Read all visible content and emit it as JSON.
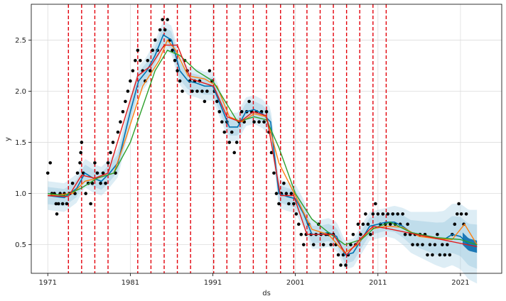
{
  "chart_data": {
    "type": "line",
    "xlabel": "ds",
    "ylabel": "y",
    "xlim": [
      1969.0,
      2026.0
    ],
    "ylim": [
      0.22,
      2.85
    ],
    "x_ticks": [
      {
        "value": 1971,
        "label": "1971"
      },
      {
        "value": 1981,
        "label": "1981"
      },
      {
        "value": 1991,
        "label": "1991"
      },
      {
        "value": 2001,
        "label": "2001"
      },
      {
        "value": 2011,
        "label": "2011"
      },
      {
        "value": 2021,
        "label": "2021"
      }
    ],
    "y_ticks": [
      {
        "value": 0.5,
        "label": "0.5"
      },
      {
        "value": 1.0,
        "label": "1.0"
      },
      {
        "value": 1.5,
        "label": "1.5"
      },
      {
        "value": 2.0,
        "label": "2.0"
      },
      {
        "value": 2.5,
        "label": "2.5"
      }
    ],
    "grid": true,
    "changepoints": [
      1973.5,
      1975.1,
      1976.7,
      1978.3,
      1981.9,
      1983.5,
      1985.1,
      1986.7,
      1988.3,
      1991.1,
      1992.7,
      1994.3,
      1995.9,
      1997.5,
      1999.2,
      2000.8,
      2002.4,
      2004.0,
      2005.6,
      2007.2,
      2008.8,
      2010.4,
      2012.0
    ],
    "observations": [
      [
        1971.0,
        1.2
      ],
      [
        1971.3,
        1.3
      ],
      [
        1971.5,
        1.0
      ],
      [
        1971.8,
        1.0
      ],
      [
        1972.0,
        0.9
      ],
      [
        1972.1,
        0.8
      ],
      [
        1972.3,
        0.9
      ],
      [
        1972.5,
        1.0
      ],
      [
        1972.8,
        0.9
      ],
      [
        1973.0,
        1.0
      ],
      [
        1973.3,
        0.9
      ],
      [
        1973.7,
        1.0
      ],
      [
        1974.0,
        1.1
      ],
      [
        1974.3,
        1.0
      ],
      [
        1974.6,
        1.2
      ],
      [
        1974.9,
        1.3
      ],
      [
        1975.0,
        1.4
      ],
      [
        1975.1,
        1.5
      ],
      [
        1975.3,
        1.2
      ],
      [
        1975.6,
        1.0
      ],
      [
        1975.9,
        1.1
      ],
      [
        1976.2,
        0.9
      ],
      [
        1976.4,
        1.1
      ],
      [
        1976.7,
        1.3
      ],
      [
        1977.0,
        1.2
      ],
      [
        1977.4,
        1.1
      ],
      [
        1977.7,
        1.2
      ],
      [
        1978.0,
        1.1
      ],
      [
        1978.3,
        1.3
      ],
      [
        1978.6,
        1.4
      ],
      [
        1978.9,
        1.5
      ],
      [
        1979.2,
        1.2
      ],
      [
        1979.5,
        1.6
      ],
      [
        1979.8,
        1.7
      ],
      [
        1980.1,
        1.8
      ],
      [
        1980.4,
        1.9
      ],
      [
        1980.7,
        2.0
      ],
      [
        1981.0,
        2.1
      ],
      [
        1981.3,
        2.2
      ],
      [
        1981.6,
        2.3
      ],
      [
        1981.9,
        2.4
      ],
      [
        1982.2,
        2.3
      ],
      [
        1982.5,
        2.2
      ],
      [
        1982.8,
        2.1
      ],
      [
        1983.1,
        2.3
      ],
      [
        1983.4,
        2.2
      ],
      [
        1983.7,
        2.4
      ],
      [
        1984.0,
        2.5
      ],
      [
        1984.3,
        2.4
      ],
      [
        1984.6,
        2.6
      ],
      [
        1984.9,
        2.7
      ],
      [
        1985.2,
        2.6
      ],
      [
        1985.5,
        2.7
      ],
      [
        1985.8,
        2.5
      ],
      [
        1986.1,
        2.4
      ],
      [
        1986.4,
        2.3
      ],
      [
        1986.7,
        2.2
      ],
      [
        1987.0,
        2.1
      ],
      [
        1987.3,
        2.0
      ],
      [
        1987.6,
        2.3
      ],
      [
        1987.9,
        2.2
      ],
      [
        1988.2,
        2.1
      ],
      [
        1988.5,
        2.0
      ],
      [
        1988.8,
        2.1
      ],
      [
        1989.1,
        2.0
      ],
      [
        1989.4,
        2.1
      ],
      [
        1989.7,
        2.0
      ],
      [
        1990.0,
        1.9
      ],
      [
        1990.3,
        2.0
      ],
      [
        1990.6,
        2.2
      ],
      [
        1990.9,
        2.1
      ],
      [
        1991.2,
        2.0
      ],
      [
        1991.5,
        1.9
      ],
      [
        1991.8,
        1.8
      ],
      [
        1992.1,
        1.7
      ],
      [
        1992.4,
        1.6
      ],
      [
        1992.7,
        1.7
      ],
      [
        1993.0,
        1.5
      ],
      [
        1993.3,
        1.6
      ],
      [
        1993.6,
        1.4
      ],
      [
        1993.9,
        1.5
      ],
      [
        1994.2,
        1.7
      ],
      [
        1994.5,
        1.8
      ],
      [
        1994.8,
        1.7
      ],
      [
        1995.1,
        1.8
      ],
      [
        1995.4,
        1.9
      ],
      [
        1995.7,
        1.8
      ],
      [
        1996.0,
        1.7
      ],
      [
        1996.3,
        1.8
      ],
      [
        1996.6,
        1.7
      ],
      [
        1996.9,
        1.8
      ],
      [
        1997.2,
        1.7
      ],
      [
        1997.5,
        1.8
      ],
      [
        1997.8,
        1.6
      ],
      [
        1998.1,
        1.4
      ],
      [
        1998.4,
        1.2
      ],
      [
        1998.7,
        1.0
      ],
      [
        1999.0,
        0.9
      ],
      [
        1999.3,
        1.0
      ],
      [
        1999.6,
        1.1
      ],
      [
        1999.9,
        1.0
      ],
      [
        2000.2,
        0.9
      ],
      [
        2000.5,
        1.0
      ],
      [
        2000.8,
        0.9
      ],
      [
        2001.1,
        0.8
      ],
      [
        2001.4,
        0.7
      ],
      [
        2001.7,
        0.6
      ],
      [
        2002.0,
        0.5
      ],
      [
        2002.3,
        0.6
      ],
      [
        2002.6,
        0.7
      ],
      [
        2002.9,
        0.6
      ],
      [
        2003.2,
        0.5
      ],
      [
        2003.5,
        0.6
      ],
      [
        2003.8,
        0.7
      ],
      [
        2004.1,
        0.6
      ],
      [
        2004.4,
        0.5
      ],
      [
        2004.7,
        0.6
      ],
      [
        2005.0,
        0.6
      ],
      [
        2005.3,
        0.5
      ],
      [
        2005.6,
        0.6
      ],
      [
        2005.9,
        0.5
      ],
      [
        2006.2,
        0.4
      ],
      [
        2006.5,
        0.3
      ],
      [
        2006.8,
        0.4
      ],
      [
        2007.1,
        0.3
      ],
      [
        2007.4,
        0.4
      ],
      [
        2007.7,
        0.5
      ],
      [
        2008.0,
        0.6
      ],
      [
        2008.3,
        0.5
      ],
      [
        2008.6,
        0.7
      ],
      [
        2008.9,
        0.6
      ],
      [
        2009.2,
        0.7
      ],
      [
        2009.5,
        0.8
      ],
      [
        2009.8,
        0.7
      ],
      [
        2010.1,
        0.6
      ],
      [
        2010.4,
        0.8
      ],
      [
        2010.7,
        0.9
      ],
      [
        2011.0,
        0.8
      ],
      [
        2011.3,
        0.7
      ],
      [
        2011.6,
        0.8
      ],
      [
        2011.9,
        0.7
      ],
      [
        2012.2,
        0.8
      ],
      [
        2012.5,
        0.7
      ],
      [
        2012.8,
        0.8
      ],
      [
        2013.1,
        0.7
      ],
      [
        2013.4,
        0.8
      ],
      [
        2013.7,
        0.7
      ],
      [
        2014.0,
        0.8
      ],
      [
        2014.3,
        0.6
      ],
      [
        2014.6,
        0.7
      ],
      [
        2014.9,
        0.6
      ],
      [
        2015.2,
        0.5
      ],
      [
        2015.5,
        0.6
      ],
      [
        2015.8,
        0.5
      ],
      [
        2016.1,
        0.6
      ],
      [
        2016.4,
        0.5
      ],
      [
        2016.7,
        0.6
      ],
      [
        2017.0,
        0.4
      ],
      [
        2017.3,
        0.5
      ],
      [
        2017.6,
        0.4
      ],
      [
        2017.9,
        0.5
      ],
      [
        2018.2,
        0.6
      ],
      [
        2018.5,
        0.4
      ],
      [
        2018.8,
        0.5
      ],
      [
        2019.1,
        0.4
      ],
      [
        2019.4,
        0.5
      ],
      [
        2019.7,
        0.4
      ],
      [
        2020.0,
        0.6
      ],
      [
        2020.3,
        0.7
      ],
      [
        2020.6,
        0.8
      ],
      [
        2020.8,
        0.9
      ],
      [
        2021.1,
        0.8
      ],
      [
        2021.4,
        0.7
      ],
      [
        2021.7,
        0.8
      ]
    ],
    "series": [
      {
        "color": "#0072B2",
        "x": [
          1971.0,
          1973.0,
          1974.5,
          1975.5,
          1976.5,
          1977.5,
          1978.5,
          1979.5,
          1981.0,
          1982.0,
          1983.0,
          1984.0,
          1985.0,
          1986.0,
          1987.0,
          1988.0,
          1989.0,
          1990.0,
          1991.0,
          1992.0,
          1993.0,
          1994.0,
          1995.0,
          1996.0,
          1997.0,
          1998.0,
          1999.0,
          2000.0,
          2001.0,
          2002.0,
          2003.0,
          2004.0,
          2005.0,
          2006.0,
          2007.0,
          2008.0,
          2009.0,
          2010.0,
          2011.0,
          2012.0,
          2013.0,
          2014.0,
          2015.0,
          2016.0,
          2017.0,
          2018.0,
          2019.0,
          2020.0,
          2021.0,
          2022.0,
          2023.0
        ],
        "y": [
          0.98,
          0.96,
          1.05,
          1.2,
          1.15,
          1.12,
          1.2,
          1.3,
          1.8,
          2.1,
          2.2,
          2.35,
          2.55,
          2.5,
          2.2,
          2.1,
          2.08,
          2.05,
          2.05,
          1.85,
          1.65,
          1.65,
          1.8,
          1.82,
          1.78,
          1.7,
          1.0,
          0.97,
          0.95,
          0.8,
          0.6,
          0.6,
          0.62,
          0.58,
          0.4,
          0.42,
          0.55,
          0.68,
          0.7,
          0.72,
          0.72,
          0.68,
          0.62,
          0.6,
          0.58,
          0.56,
          0.55,
          0.6,
          0.58,
          0.5,
          0.48
        ]
      },
      {
        "color": "#FF7F0E",
        "x": [
          1971.0,
          1974.0,
          1975.5,
          1977.0,
          1979.0,
          1980.5,
          1982.5,
          1984.5,
          1985.5,
          1986.5,
          1988.0,
          1990.0,
          1991.5,
          1993.0,
          1994.5,
          1996.0,
          1997.5,
          1999.0,
          2001.0,
          2003.0,
          2005.0,
          2007.0,
          2008.5,
          2010.0,
          2012.0,
          2014.0,
          2016.0,
          2018.0,
          2020.0,
          2021.5,
          2023.0
        ],
        "y": [
          0.98,
          1.0,
          1.12,
          1.15,
          1.2,
          1.55,
          2.05,
          2.3,
          2.5,
          2.4,
          2.15,
          2.12,
          2.05,
          1.75,
          1.7,
          1.78,
          1.75,
          1.3,
          0.98,
          0.65,
          0.6,
          0.42,
          0.5,
          0.65,
          0.68,
          0.67,
          0.58,
          0.56,
          0.55,
          0.7,
          0.5
        ]
      },
      {
        "color": "#2CA02C",
        "x": [
          1971.0,
          1973.0,
          1975.0,
          1977.0,
          1979.0,
          1981.0,
          1982.5,
          1984.0,
          1985.5,
          1987.0,
          1989.0,
          1991.0,
          1992.5,
          1994.0,
          1996.0,
          1997.5,
          1999.0,
          2001.0,
          2003.0,
          2005.0,
          2007.0,
          2009.0,
          2010.5,
          2012.5,
          2015.0,
          2018.0,
          2021.0,
          2023.0
        ],
        "y": [
          1.0,
          0.98,
          1.05,
          1.15,
          1.2,
          1.5,
          1.85,
          2.2,
          2.4,
          2.35,
          2.2,
          2.1,
          1.9,
          1.7,
          1.75,
          1.72,
          1.45,
          1.0,
          0.75,
          0.62,
          0.5,
          0.55,
          0.66,
          0.72,
          0.62,
          0.57,
          0.55,
          0.5
        ]
      },
      {
        "color": "#E31A1C",
        "x": [
          1971.0,
          1973.5,
          1975.1,
          1976.7,
          1978.3,
          1981.9,
          1983.5,
          1985.1,
          1986.7,
          1988.3,
          1991.1,
          1992.7,
          1994.3,
          1995.9,
          1997.5,
          1999.2,
          2000.8,
          2002.4,
          2004.0,
          2005.6,
          2007.2,
          2008.8,
          2010.4,
          2012.0,
          2023.0
        ],
        "y": [
          0.98,
          0.97,
          1.18,
          1.15,
          1.2,
          2.15,
          2.25,
          2.45,
          2.45,
          2.12,
          2.05,
          1.75,
          1.7,
          1.8,
          1.76,
          0.98,
          0.98,
          0.6,
          0.6,
          0.6,
          0.4,
          0.55,
          0.68,
          0.66,
          0.48
        ]
      }
    ]
  }
}
